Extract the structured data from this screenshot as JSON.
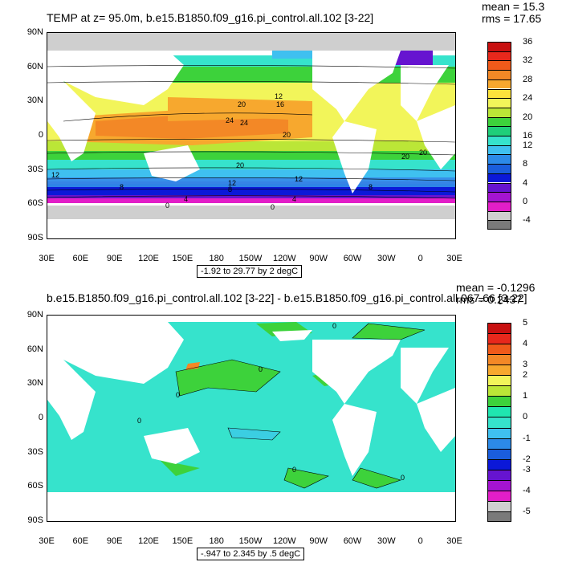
{
  "chart_data": [
    {
      "type": "heatmap",
      "title": "TEMP at z=  95.0m, b.e15.B1850.f09_g16.pi_control.all.102 [3-22]",
      "stats": {
        "mean": "mean = 15.3",
        "rms": "rms = 17.65"
      },
      "range_note": "-1.92 to 29.77 by 2 degC",
      "y_ticks": [
        "90N",
        "60N",
        "30N",
        "0",
        "30S",
        "60S",
        "90S"
      ],
      "x_ticks": [
        "30E",
        "60E",
        "90E",
        "120E",
        "150E",
        "180",
        "150W",
        "120W",
        "90W",
        "60W",
        "30W",
        "0",
        "30E"
      ],
      "colorbar": {
        "labels": [
          "36",
          "32",
          "28",
          "24",
          "20",
          "16",
          "12",
          "8",
          "4",
          "0",
          "-4"
        ],
        "colors": [
          "#c81010",
          "#e8281c",
          "#f05a1a",
          "#f38826",
          "#f7a82e",
          "#fde23c",
          "#f2f55a",
          "#bbe637",
          "#3dd23b",
          "#1fcf79",
          "#36e3cc",
          "#3fc0f0",
          "#2c8ae8",
          "#1a5ddc",
          "#0b18d8",
          "#6614d0",
          "#a414d0",
          "#e21ec8",
          "#cfcfcf",
          "#7a7a7a"
        ]
      },
      "contour_labels": [
        "20",
        "24",
        "12",
        "16",
        "12",
        "20",
        "20",
        "20",
        "12",
        "8",
        "8",
        "12",
        "8",
        "4",
        "0",
        "0",
        "4",
        "24",
        "20"
      ]
    },
    {
      "type": "heatmap",
      "title": "b.e15.B1850.f09_g16.pi_control.all.102 [3-22] - b.e15.B1850.f09_g16.pi_control.all.067.66 [3-22]",
      "stats": {
        "mean": "mean = -0.1296",
        "rms": "rms = 0.2437"
      },
      "range_note": "-.947 to 2.345 by .5 degC",
      "y_ticks": [
        "90N",
        "60N",
        "30N",
        "0",
        "30S",
        "60S",
        "90S"
      ],
      "x_ticks": [
        "30E",
        "60E",
        "90E",
        "120E",
        "150E",
        "180",
        "150W",
        "120W",
        "90W",
        "60W",
        "30W",
        "0",
        "30E"
      ],
      "colorbar": {
        "labels": [
          "5",
          "4",
          "3",
          "2",
          "1",
          "0",
          "-1",
          "-2",
          "-3",
          "-4",
          "-5"
        ],
        "colors": [
          "#c81010",
          "#e8281c",
          "#f05a1a",
          "#f38826",
          "#f7a82e",
          "#f2f55a",
          "#bbe637",
          "#3dd23b",
          "#1fe6b0",
          "#36e3cc",
          "#3fc0f0",
          "#2c8ae8",
          "#1a5ddc",
          "#0b18d8",
          "#6614d0",
          "#a414d0",
          "#e21ec8",
          "#cfcfcf",
          "#7a7a7a"
        ]
      },
      "contour_labels": [
        "0",
        "0",
        "0",
        "0",
        "0",
        "0"
      ]
    }
  ]
}
